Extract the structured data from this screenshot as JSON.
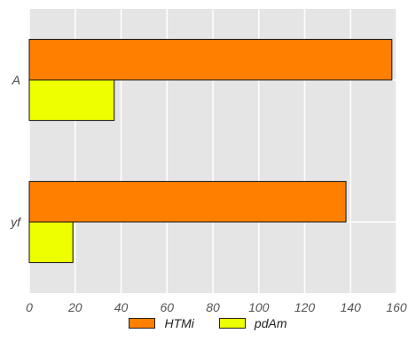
{
  "chart_data": {
    "type": "bar",
    "orientation": "horizontal",
    "title": "",
    "xlabel": "",
    "ylabel": "",
    "categories": [
      "A",
      "yf"
    ],
    "series": [
      {
        "name": "HTMi",
        "values": [
          158,
          138
        ],
        "color": "#ff7f00"
      },
      {
        "name": "pdAm",
        "values": [
          37,
          19
        ],
        "color": "#eeff00"
      }
    ],
    "xlim": [
      0,
      160
    ],
    "xticks": [
      0,
      20,
      40,
      60,
      80,
      100,
      120,
      140,
      160
    ],
    "grid": true,
    "legend_position": "bottom",
    "background_color": "#e5e5e5",
    "grid_color": "#ffffff"
  }
}
